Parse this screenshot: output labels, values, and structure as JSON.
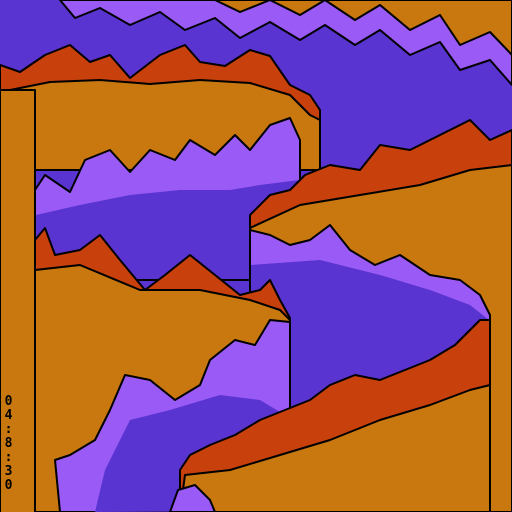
{
  "overlay": {
    "timestamp": "04:8:30"
  }
}
